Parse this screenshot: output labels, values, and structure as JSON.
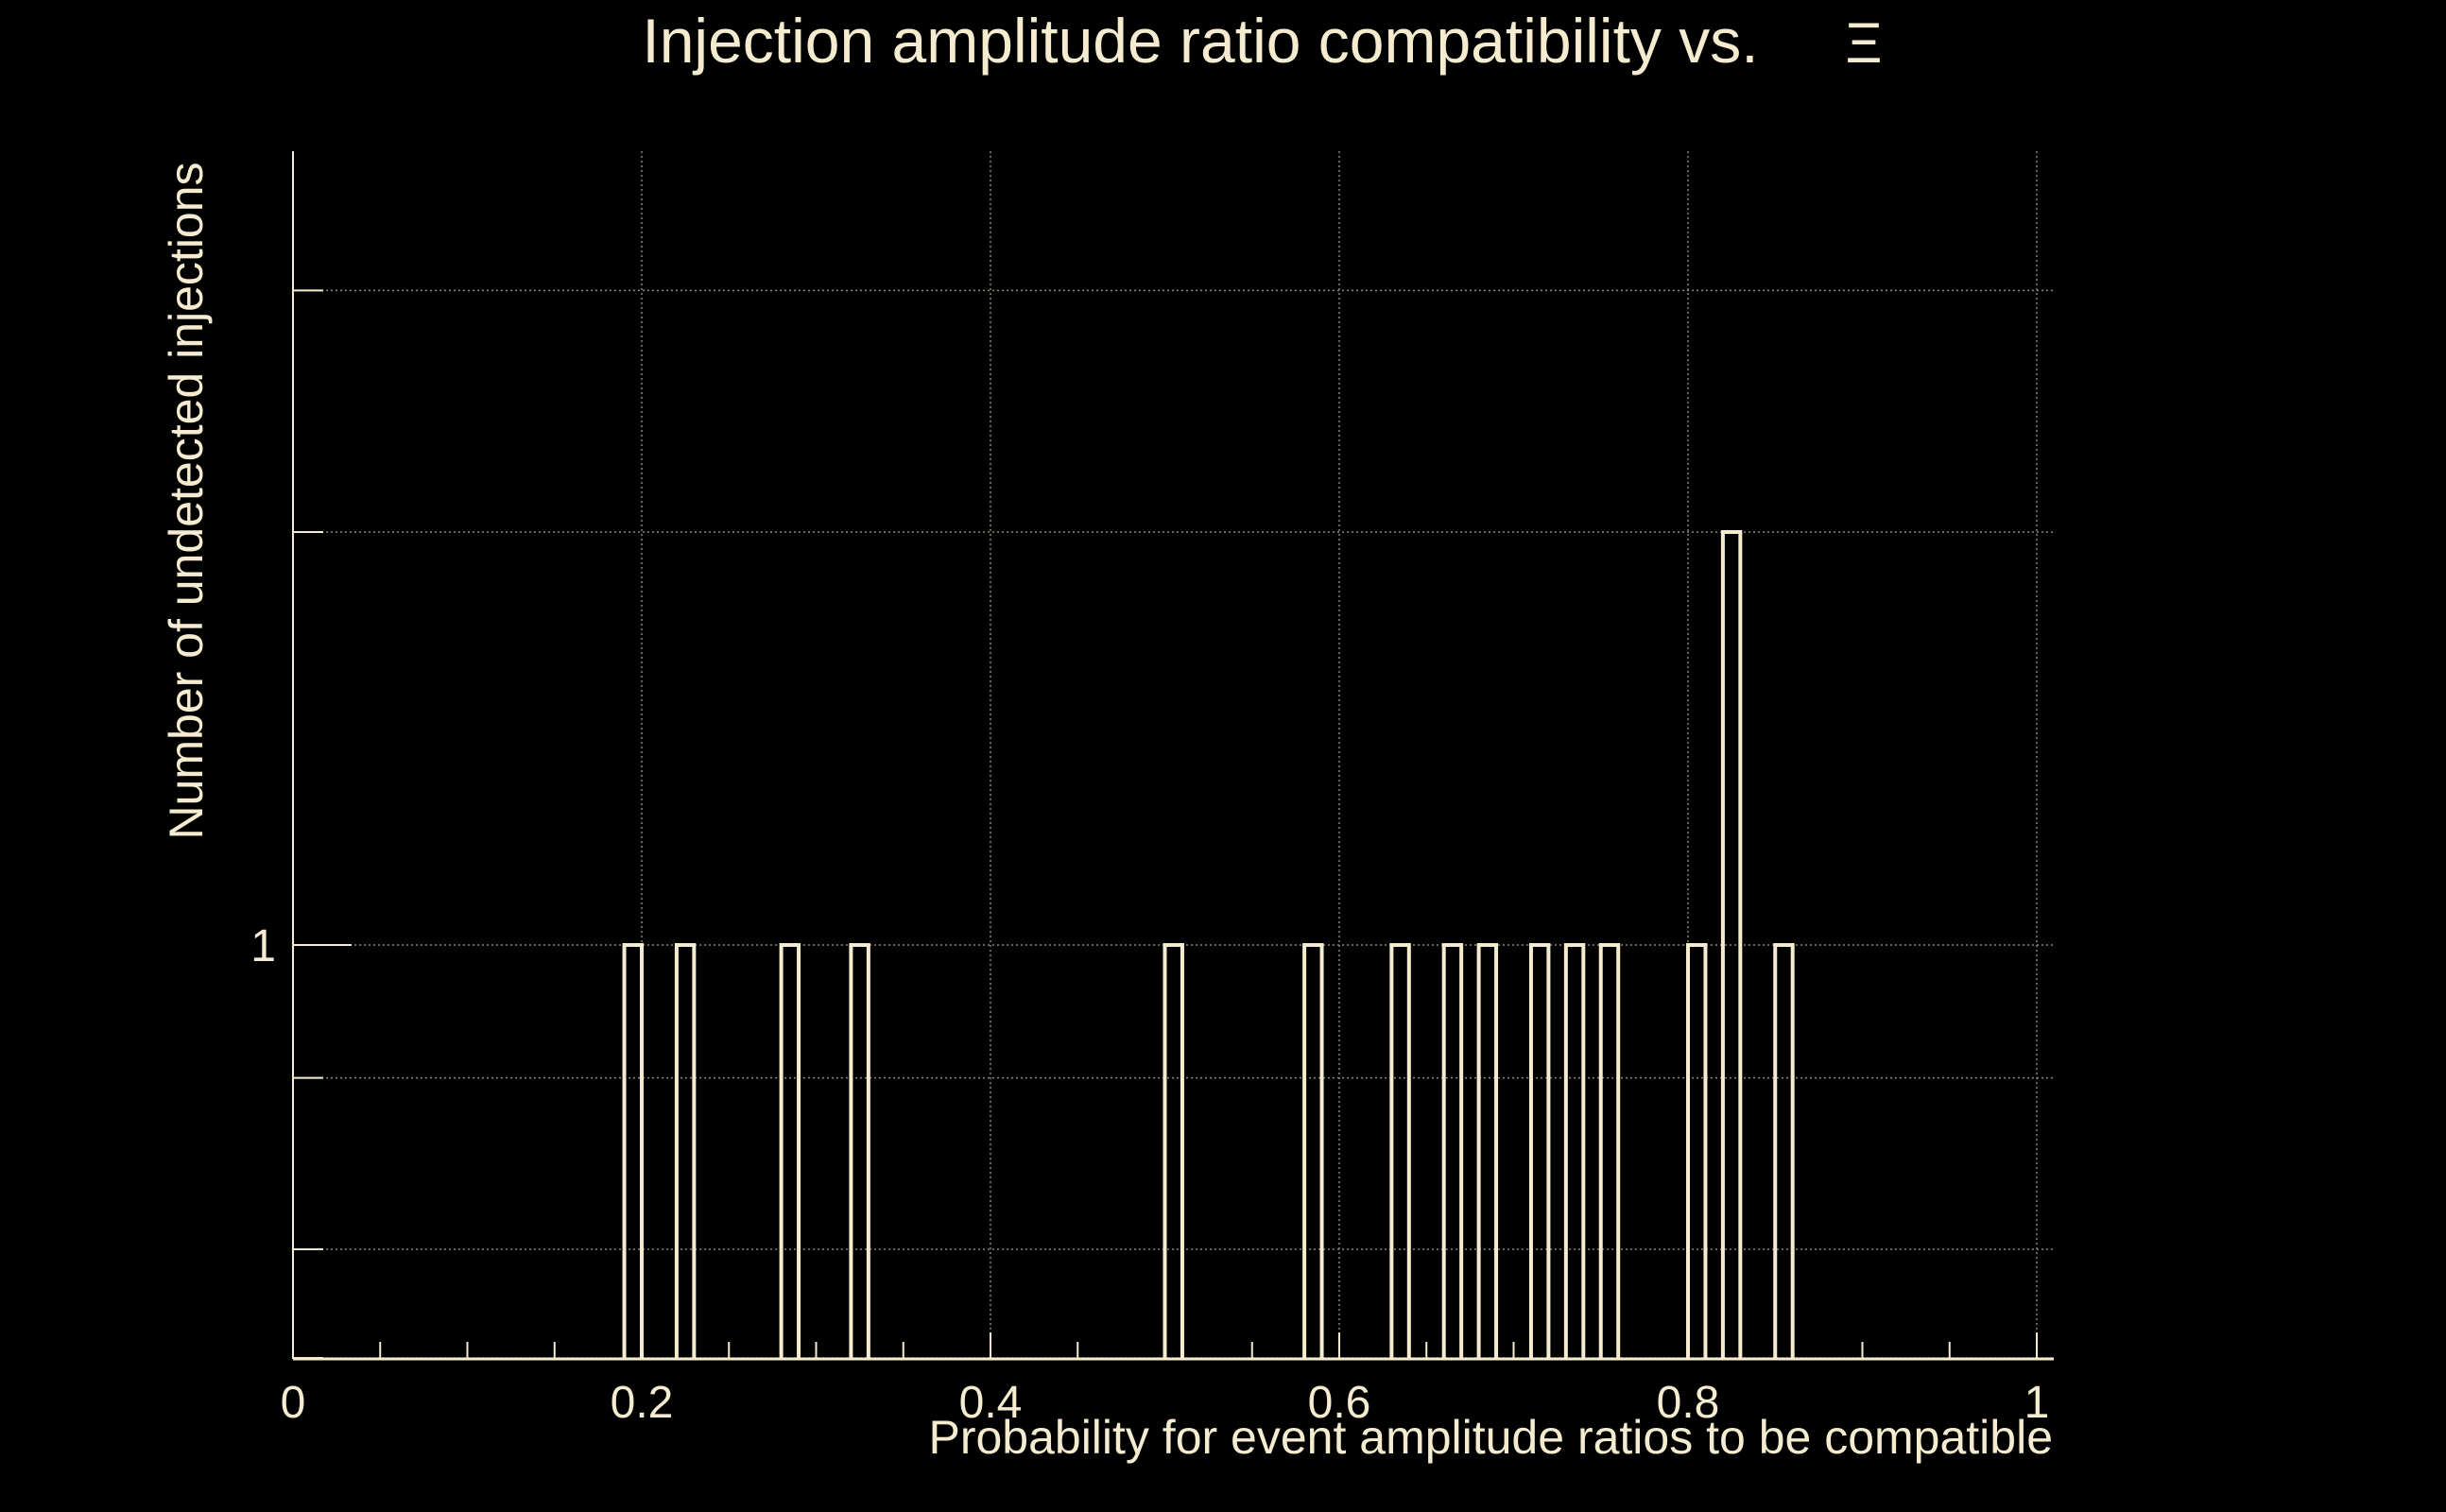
{
  "chart_data": {
    "type": "bar",
    "title": "Injection amplitude ratio compatibility vs.",
    "title_symbol": "Ξ",
    "xlabel": "Probability for event amplitude ratios to be compatible",
    "ylabel": "Number of undetected injections",
    "xlim": [
      0,
      1
    ],
    "y_scale": "log",
    "x_ticks": [
      "0",
      "0.2",
      "0.4",
      "0.6",
      "0.8",
      "1"
    ],
    "x_tick_values": [
      0,
      0.2,
      0.4,
      0.6,
      0.8,
      1
    ],
    "y_ticks": [
      "1"
    ],
    "y_tick_values": [
      1
    ],
    "bin_width": 0.01,
    "grid": true,
    "colors": {
      "background": "#000000",
      "foreground": "#f5ecd0",
      "grid": "#8a8677"
    },
    "bins": [
      {
        "x0": 0.19,
        "x1": 0.2,
        "count": 1
      },
      {
        "x0": 0.22,
        "x1": 0.23,
        "count": 1
      },
      {
        "x0": 0.28,
        "x1": 0.29,
        "count": 1
      },
      {
        "x0": 0.32,
        "x1": 0.33,
        "count": 1
      },
      {
        "x0": 0.5,
        "x1": 0.51,
        "count": 1
      },
      {
        "x0": 0.58,
        "x1": 0.59,
        "count": 1
      },
      {
        "x0": 0.63,
        "x1": 0.64,
        "count": 1
      },
      {
        "x0": 0.66,
        "x1": 0.67,
        "count": 1
      },
      {
        "x0": 0.68,
        "x1": 0.69,
        "count": 1
      },
      {
        "x0": 0.71,
        "x1": 0.72,
        "count": 1
      },
      {
        "x0": 0.73,
        "x1": 0.74,
        "count": 1
      },
      {
        "x0": 0.75,
        "x1": 0.76,
        "count": 1
      },
      {
        "x0": 0.8,
        "x1": 0.81,
        "count": 1
      },
      {
        "x0": 0.82,
        "x1": 0.83,
        "count": 2
      },
      {
        "x0": 0.85,
        "x1": 0.86,
        "count": 1
      }
    ]
  }
}
